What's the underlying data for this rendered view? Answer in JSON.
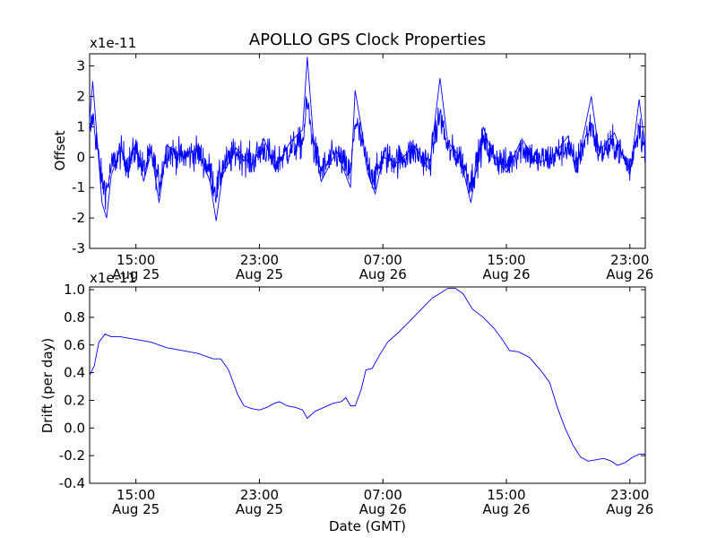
{
  "chart_data": {
    "title": "APOLLO GPS Clock Properties",
    "xlabel": "Date (GMT)",
    "x_ticks": [
      {
        "time": "15:00",
        "date": "Aug 25",
        "hours": 15
      },
      {
        "time": "23:00",
        "date": "Aug 25",
        "hours": 23
      },
      {
        "time": "07:00",
        "date": "Aug 26",
        "hours": 31
      },
      {
        "time": "15:00",
        "date": "Aug 26",
        "hours": 39
      },
      {
        "time": "23:00",
        "date": "Aug 26",
        "hours": 47
      }
    ],
    "xlim_hours": [
      12,
      48
    ],
    "panels": [
      {
        "type": "line",
        "ylabel": "Offset",
        "multiplier": "x1e-11",
        "ylim": [
          -3,
          3.4
        ],
        "yticks": [
          -3,
          -2,
          -1,
          0,
          1,
          2,
          3
        ],
        "ytick_labels": [
          "-3",
          "-2",
          "-1",
          "0",
          "1",
          "2",
          "3"
        ],
        "color": "#0000ff",
        "envelope_points": [
          {
            "h": 12.0,
            "v": 1.2
          },
          {
            "h": 12.2,
            "v": 2.5
          },
          {
            "h": 12.5,
            "v": 0.5
          },
          {
            "h": 12.8,
            "v": -1.5
          },
          {
            "h": 13.1,
            "v": -2.0
          },
          {
            "h": 13.4,
            "v": -0.6
          },
          {
            "h": 14.0,
            "v": 0.3
          },
          {
            "h": 14.5,
            "v": -0.4
          },
          {
            "h": 15.0,
            "v": 0.5
          },
          {
            "h": 15.5,
            "v": -0.8
          },
          {
            "h": 16.0,
            "v": 0.2
          },
          {
            "h": 16.5,
            "v": -1.5
          },
          {
            "h": 17.0,
            "v": 0.4
          },
          {
            "h": 18.0,
            "v": 0.0
          },
          {
            "h": 19.0,
            "v": 0.3
          },
          {
            "h": 19.8,
            "v": -0.8
          },
          {
            "h": 20.2,
            "v": -2.1
          },
          {
            "h": 20.6,
            "v": -0.6
          },
          {
            "h": 21.5,
            "v": 0.3
          },
          {
            "h": 22.5,
            "v": -0.3
          },
          {
            "h": 23.3,
            "v": 0.6
          },
          {
            "h": 24.0,
            "v": -0.4
          },
          {
            "h": 25.0,
            "v": 0.5
          },
          {
            "h": 25.8,
            "v": 0.9
          },
          {
            "h": 26.1,
            "v": 3.3
          },
          {
            "h": 26.5,
            "v": 0.6
          },
          {
            "h": 27.0,
            "v": -0.8
          },
          {
            "h": 28.0,
            "v": 0.2
          },
          {
            "h": 28.9,
            "v": -1.0
          },
          {
            "h": 29.2,
            "v": 2.2
          },
          {
            "h": 29.6,
            "v": 1.0
          },
          {
            "h": 30.0,
            "v": -0.5
          },
          {
            "h": 30.5,
            "v": -1.2
          },
          {
            "h": 31.0,
            "v": 0.0
          },
          {
            "h": 32.0,
            "v": -0.2
          },
          {
            "h": 33.0,
            "v": 0.4
          },
          {
            "h": 34.0,
            "v": -0.4
          },
          {
            "h": 34.7,
            "v": 2.6
          },
          {
            "h": 35.2,
            "v": 0.5
          },
          {
            "h": 36.0,
            "v": 0.0
          },
          {
            "h": 36.7,
            "v": -1.5
          },
          {
            "h": 37.5,
            "v": 1.0
          },
          {
            "h": 38.0,
            "v": 0.2
          },
          {
            "h": 39.0,
            "v": -0.5
          },
          {
            "h": 40.0,
            "v": 0.6
          },
          {
            "h": 41.0,
            "v": -0.2
          },
          {
            "h": 42.0,
            "v": 0.0
          },
          {
            "h": 43.0,
            "v": 0.7
          },
          {
            "h": 43.5,
            "v": -0.5
          },
          {
            "h": 44.5,
            "v": 2.0
          },
          {
            "h": 45.0,
            "v": 0.2
          },
          {
            "h": 46.0,
            "v": 0.8
          },
          {
            "h": 47.0,
            "v": -0.6
          },
          {
            "h": 47.6,
            "v": 1.9
          },
          {
            "h": 48.0,
            "v": 0.3
          }
        ]
      },
      {
        "type": "line",
        "ylabel": "Drift (per day)",
        "multiplier": "x1e-11",
        "ylim": [
          -0.4,
          1.02
        ],
        "yticks": [
          -0.4,
          -0.2,
          0.0,
          0.2,
          0.4,
          0.6,
          0.8,
          1.0
        ],
        "ytick_labels": [
          "-0.4",
          "-0.2",
          "0.0",
          "0.2",
          "0.4",
          "0.6",
          "0.8",
          "1.0"
        ],
        "color": "#0000ff",
        "points": [
          {
            "h": 12.0,
            "v": 0.38
          },
          {
            "h": 12.3,
            "v": 0.45
          },
          {
            "h": 12.6,
            "v": 0.62
          },
          {
            "h": 13.0,
            "v": 0.68
          },
          {
            "h": 13.4,
            "v": 0.66
          },
          {
            "h": 14.0,
            "v": 0.66
          },
          {
            "h": 15.0,
            "v": 0.64
          },
          {
            "h": 16.0,
            "v": 0.62
          },
          {
            "h": 17.0,
            "v": 0.58
          },
          {
            "h": 18.0,
            "v": 0.56
          },
          {
            "h": 19.0,
            "v": 0.54
          },
          {
            "h": 20.0,
            "v": 0.5
          },
          {
            "h": 20.5,
            "v": 0.5
          },
          {
            "h": 21.0,
            "v": 0.42
          },
          {
            "h": 21.6,
            "v": 0.24
          },
          {
            "h": 22.0,
            "v": 0.16
          },
          {
            "h": 22.5,
            "v": 0.14
          },
          {
            "h": 23.0,
            "v": 0.13
          },
          {
            "h": 23.5,
            "v": 0.15
          },
          {
            "h": 24.0,
            "v": 0.18
          },
          {
            "h": 24.3,
            "v": 0.19
          },
          {
            "h": 24.8,
            "v": 0.16
          },
          {
            "h": 25.3,
            "v": 0.15
          },
          {
            "h": 25.8,
            "v": 0.13
          },
          {
            "h": 26.1,
            "v": 0.07
          },
          {
            "h": 26.6,
            "v": 0.12
          },
          {
            "h": 27.2,
            "v": 0.15
          },
          {
            "h": 27.8,
            "v": 0.18
          },
          {
            "h": 28.3,
            "v": 0.19
          },
          {
            "h": 28.6,
            "v": 0.22
          },
          {
            "h": 28.9,
            "v": 0.16
          },
          {
            "h": 29.2,
            "v": 0.16
          },
          {
            "h": 29.6,
            "v": 0.28
          },
          {
            "h": 29.9,
            "v": 0.42
          },
          {
            "h": 30.3,
            "v": 0.43
          },
          {
            "h": 30.8,
            "v": 0.53
          },
          {
            "h": 31.3,
            "v": 0.62
          },
          {
            "h": 32.0,
            "v": 0.69
          },
          {
            "h": 32.8,
            "v": 0.78
          },
          {
            "h": 33.5,
            "v": 0.86
          },
          {
            "h": 34.2,
            "v": 0.94
          },
          {
            "h": 34.8,
            "v": 0.98
          },
          {
            "h": 35.2,
            "v": 1.01
          },
          {
            "h": 35.7,
            "v": 1.01
          },
          {
            "h": 36.2,
            "v": 0.97
          },
          {
            "h": 36.8,
            "v": 0.86
          },
          {
            "h": 37.5,
            "v": 0.8
          },
          {
            "h": 38.2,
            "v": 0.72
          },
          {
            "h": 38.8,
            "v": 0.63
          },
          {
            "h": 39.2,
            "v": 0.56
          },
          {
            "h": 39.8,
            "v": 0.55
          },
          {
            "h": 40.5,
            "v": 0.51
          },
          {
            "h": 41.2,
            "v": 0.42
          },
          {
            "h": 41.8,
            "v": 0.33
          },
          {
            "h": 42.3,
            "v": 0.15
          },
          {
            "h": 42.8,
            "v": 0.0
          },
          {
            "h": 43.3,
            "v": -0.12
          },
          {
            "h": 43.8,
            "v": -0.21
          },
          {
            "h": 44.3,
            "v": -0.24
          },
          {
            "h": 44.8,
            "v": -0.23
          },
          {
            "h": 45.3,
            "v": -0.22
          },
          {
            "h": 45.8,
            "v": -0.24
          },
          {
            "h": 46.2,
            "v": -0.27
          },
          {
            "h": 46.7,
            "v": -0.25
          },
          {
            "h": 47.2,
            "v": -0.21
          },
          {
            "h": 47.6,
            "v": -0.19
          },
          {
            "h": 48.0,
            "v": -0.19
          }
        ]
      }
    ]
  }
}
